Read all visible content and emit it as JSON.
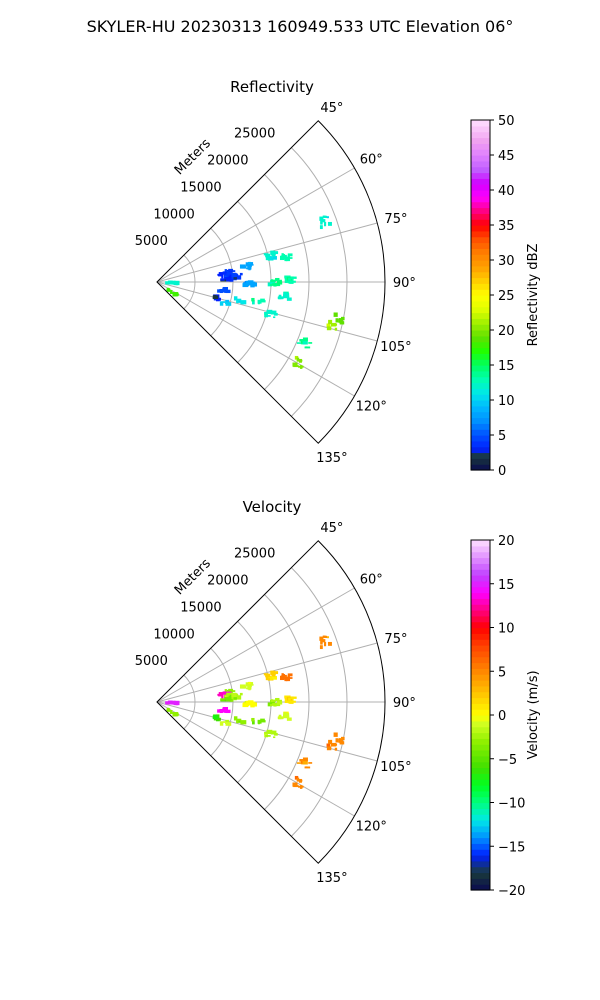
{
  "figure": {
    "suptitle": "SKYLER-HU  20230313  160949.533 UTC Elevation 06°"
  },
  "chart_data": [
    {
      "type": "polar-sector",
      "title": "Reflectivity",
      "radial_label": "Meters",
      "r_ticks": [
        "5000",
        "10000",
        "15000",
        "20000",
        "25000"
      ],
      "r_tick_values": [
        5000,
        10000,
        15000,
        20000,
        25000
      ],
      "theta_ticks": [
        "45°",
        "60°",
        "75°",
        "90°",
        "105°",
        "120°",
        "135°"
      ],
      "theta_tick_values": [
        45,
        60,
        75,
        90,
        105,
        120,
        135
      ],
      "rlim": [
        0,
        30000
      ],
      "thetalim": [
        45,
        135
      ],
      "grid": true,
      "colorbar": {
        "label": "Reflectivity dBZ",
        "range": [
          0,
          50
        ],
        "ticks": [
          "0",
          "5",
          "10",
          "15",
          "20",
          "25",
          "30",
          "35",
          "40",
          "45",
          "50"
        ],
        "tick_values": [
          0,
          5,
          10,
          15,
          20,
          25,
          30,
          35,
          40,
          45,
          50
        ]
      },
      "echoes": [
        {
          "az": 82,
          "r": 9500,
          "v": 4
        },
        {
          "az": 84,
          "r": 9000,
          "v": 3
        },
        {
          "az": 85,
          "r": 9500,
          "v": 4
        },
        {
          "az": 87,
          "r": 9300,
          "v": 3
        },
        {
          "az": 86,
          "r": 10500,
          "v": 4
        },
        {
          "az": 80,
          "r": 12000,
          "v": 8
        },
        {
          "az": 77,
          "r": 15500,
          "v": 12
        },
        {
          "az": 79,
          "r": 17200,
          "v": 13
        },
        {
          "az": 90,
          "r": 15500,
          "v": 14
        },
        {
          "az": 89,
          "r": 17500,
          "v": 13
        },
        {
          "az": 91,
          "r": 12300,
          "v": 8
        },
        {
          "az": 101,
          "r": 13500,
          "v": 13
        },
        {
          "az": 103,
          "r": 11000,
          "v": 11
        },
        {
          "az": 107,
          "r": 9300,
          "v": 10
        },
        {
          "az": 106,
          "r": 15500,
          "v": 12
        },
        {
          "az": 101,
          "r": 24500,
          "v": 19
        },
        {
          "az": 104,
          "r": 23800,
          "v": 21
        },
        {
          "az": 97,
          "r": 8800,
          "v": 5
        },
        {
          "az": 105,
          "r": 8500,
          "v": 3
        },
        {
          "az": 120,
          "r": 21500,
          "v": 20
        },
        {
          "az": 70,
          "r": 23500,
          "v": 12
        },
        {
          "az": 112,
          "r": 21000,
          "v": 14
        },
        {
          "az": 93,
          "r": 2000,
          "v": 12
        },
        {
          "az": 125,
          "r": 2400,
          "v": 18
        },
        {
          "az": 96,
          "r": 17000,
          "v": 12
        }
      ]
    },
    {
      "type": "polar-sector",
      "title": "Velocity",
      "radial_label": "Meters",
      "r_ticks": [
        "5000",
        "10000",
        "15000",
        "20000",
        "25000"
      ],
      "r_tick_values": [
        5000,
        10000,
        15000,
        20000,
        25000
      ],
      "theta_ticks": [
        "45°",
        "60°",
        "75°",
        "90°",
        "105°",
        "120°",
        "135°"
      ],
      "theta_tick_values": [
        45,
        60,
        75,
        90,
        105,
        120,
        135
      ],
      "rlim": [
        0,
        30000
      ],
      "thetalim": [
        45,
        135
      ],
      "grid": true,
      "colorbar": {
        "label": "Velocity (m/s)",
        "range": [
          -20,
          20
        ],
        "ticks": [
          "−20",
          "−15",
          "−10",
          "−5",
          "0",
          "5",
          "10",
          "15",
          "20"
        ],
        "tick_values": [
          -20,
          -15,
          -10,
          -5,
          0,
          5,
          10,
          15,
          20
        ]
      },
      "echoes": [
        {
          "az": 82,
          "r": 9500,
          "v": -3
        },
        {
          "az": 84,
          "r": 9000,
          "v": 13
        },
        {
          "az": 85,
          "r": 9500,
          "v": -2
        },
        {
          "az": 87,
          "r": 9300,
          "v": -4
        },
        {
          "az": 86,
          "r": 10500,
          "v": -2
        },
        {
          "az": 80,
          "r": 12000,
          "v": -1
        },
        {
          "az": 77,
          "r": 15500,
          "v": 2
        },
        {
          "az": 79,
          "r": 17200,
          "v": 6
        },
        {
          "az": 90,
          "r": 15500,
          "v": -2
        },
        {
          "az": 89,
          "r": 17500,
          "v": 1
        },
        {
          "az": 91,
          "r": 12300,
          "v": 0
        },
        {
          "az": 101,
          "r": 13500,
          "v": -4
        },
        {
          "az": 103,
          "r": 11000,
          "v": -3
        },
        {
          "az": 107,
          "r": 9300,
          "v": -1
        },
        {
          "az": 106,
          "r": 15500,
          "v": -2
        },
        {
          "az": 101,
          "r": 24500,
          "v": 5
        },
        {
          "az": 104,
          "r": 23800,
          "v": 5
        },
        {
          "az": 97,
          "r": 8800,
          "v": 14
        },
        {
          "az": 105,
          "r": 8500,
          "v": -6
        },
        {
          "az": 120,
          "r": 21500,
          "v": 5
        },
        {
          "az": 70,
          "r": 23500,
          "v": 5
        },
        {
          "az": 112,
          "r": 21000,
          "v": 5
        },
        {
          "az": 93,
          "r": 2000,
          "v": 15
        },
        {
          "az": 125,
          "r": 2400,
          "v": -3
        },
        {
          "az": 96,
          "r": 17000,
          "v": -1
        }
      ]
    }
  ]
}
